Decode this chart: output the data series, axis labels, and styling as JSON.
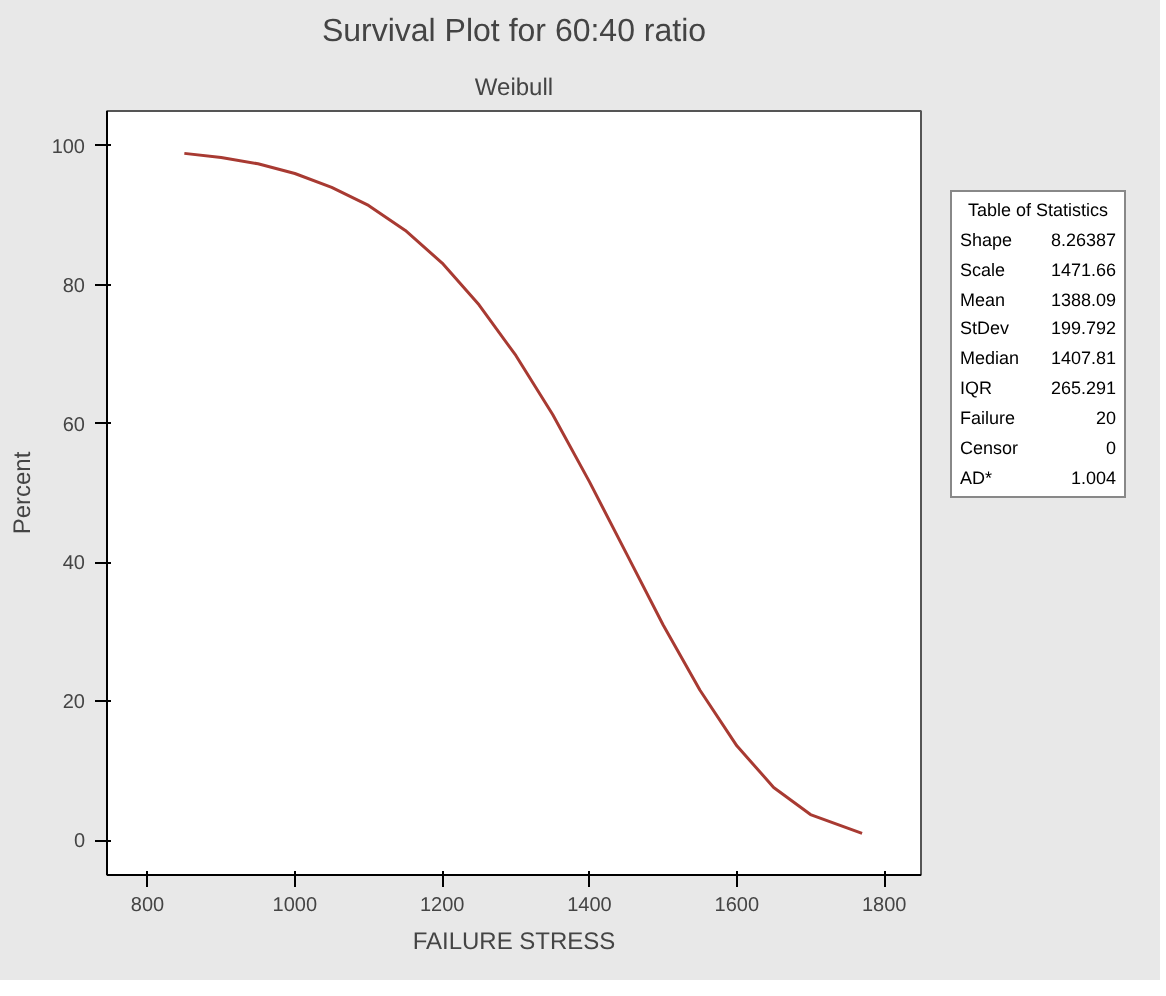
{
  "chart_data": {
    "type": "line",
    "title": "Survival Plot for 60:40 ratio",
    "subtitle": "Weibull",
    "xlabel": "FAILURE STRESS",
    "ylabel": "Percent",
    "x": [
      850,
      900,
      950,
      1000,
      1050,
      1100,
      1150,
      1200,
      1250,
      1300,
      1350,
      1400,
      1450,
      1500,
      1550,
      1600,
      1650,
      1700,
      1770
    ],
    "series": [
      {
        "color": "#a83a32",
        "values": [
          98.9,
          98.3,
          97.4,
          96.0,
          94.0,
          91.4,
          87.8,
          83.1,
          77.1,
          69.8,
          61.3,
          51.6,
          41.3,
          31.0,
          21.6,
          13.6,
          7.6,
          3.7,
          1.0
        ]
      }
    ],
    "xlim": [
      745,
      1850
    ],
    "xticks": [
      800,
      1000,
      1200,
      1400,
      1600,
      1800
    ],
    "ylim": [
      -5,
      105
    ],
    "yticks": [
      0,
      20,
      40,
      60,
      80,
      100
    ],
    "grid": false,
    "marker": "none",
    "line_style": "solid",
    "annotations": [
      "Table of Statistics",
      "Shape 8.26387",
      "Scale 1471.66",
      "Mean 1388.09",
      "StDev 199.792",
      "Median 1407.81",
      "IQR 265.291",
      "Failure 20",
      "Censor 0",
      "AD* 1.004"
    ]
  }
}
